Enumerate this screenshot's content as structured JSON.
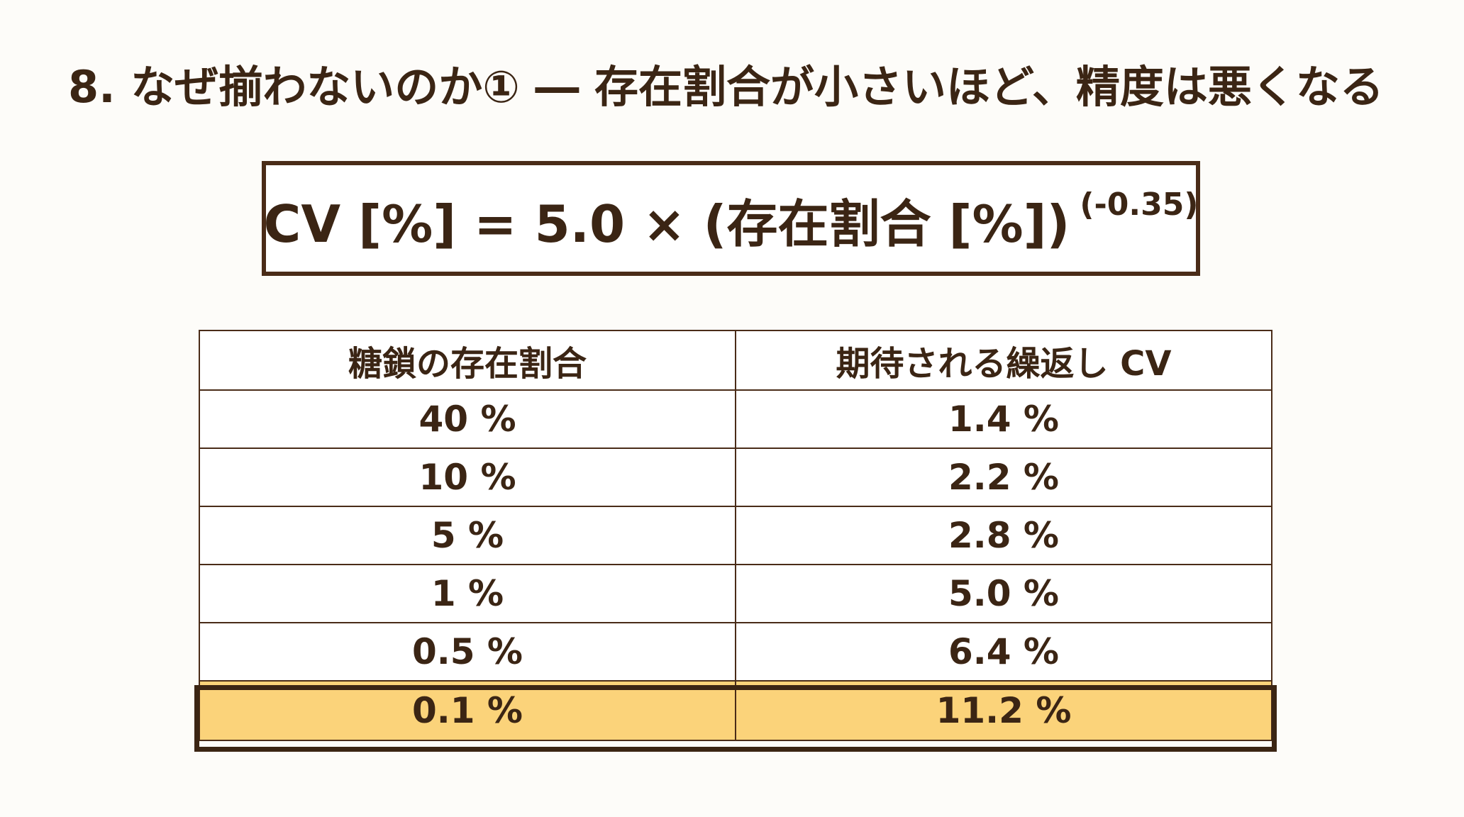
{
  "slide": {
    "title": "8. なぜ揃わないのか① ― 存在割合が小さいほど、精度は悪くなる",
    "formula": {
      "main": "CV [%] = 5.0 × (存在割合 [%])",
      "exponent": "(-0.35)"
    }
  },
  "table": {
    "headers": [
      "糖鎖の存在割合",
      "期待される繰返し CV"
    ],
    "rows": [
      [
        "40 %",
        "1.4 %"
      ],
      [
        "10 %",
        "2.2 %"
      ],
      [
        "5 %",
        "2.8 %"
      ],
      [
        "1 %",
        "5.0 %"
      ],
      [
        "0.5 %",
        "6.4 %"
      ],
      [
        "0.1 %",
        "11.2 %"
      ]
    ],
    "highlight_color": "#fbd37a",
    "border_color": "#4a2c18",
    "text_color": "#3b2514"
  }
}
